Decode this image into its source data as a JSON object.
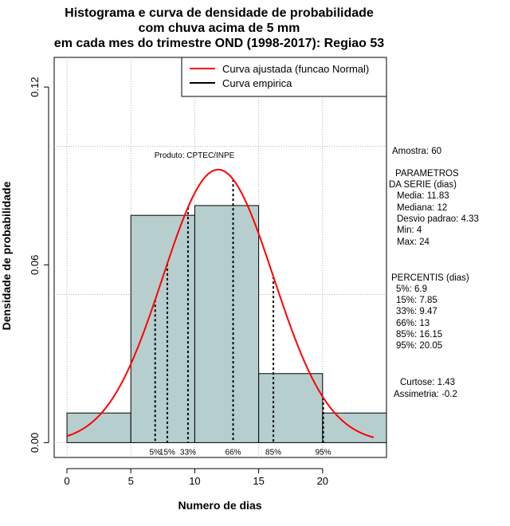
{
  "colors": {
    "bar_fill": "#b7cece",
    "curve": "#ff0000",
    "empirical": "#000000",
    "grid": "#b0b0b0"
  },
  "chart_data": {
    "type": "histogram",
    "title_lines": [
      "Histograma e curva de densidade de probabilidade",
      "com chuva acima de 5 mm",
      "em cada mes do trimestre OND (1998-2017): Regiao 53"
    ],
    "xlabel": "Numero de dias",
    "ylabel": "Densidade de probabilidade",
    "xlim": [
      -1,
      25
    ],
    "ylim": [
      -0.005,
      0.13
    ],
    "x_ticks": [
      0,
      5,
      10,
      15,
      20
    ],
    "y_ticks": [
      0.0,
      0.06,
      0.12
    ],
    "y_tick_labels": [
      "0.00",
      "0.06",
      "0.12"
    ],
    "bins": [
      {
        "x0": 0,
        "x1": 5,
        "density": 0.01
      },
      {
        "x0": 5,
        "x1": 10,
        "density": 0.0767
      },
      {
        "x0": 10,
        "x1": 15,
        "density": 0.08
      },
      {
        "x0": 15,
        "x1": 20,
        "density": 0.0233
      },
      {
        "x0": 20,
        "x1": 25,
        "density": 0.01
      }
    ],
    "normal_fit": {
      "mean": 11.83,
      "sd": 4.33,
      "x_from": 0,
      "x_to": 24
    },
    "percentile_markers": [
      {
        "label": "5%",
        "x": 6.9
      },
      {
        "label": "15%",
        "x": 7.85
      },
      {
        "label": "33%",
        "x": 9.47
      },
      {
        "label": "66%",
        "x": 13
      },
      {
        "label": "85%",
        "x": 16.15
      },
      {
        "label": "95%",
        "x": 20.05
      }
    ],
    "legend": [
      {
        "label": "Curva ajustada (funcao Normal)",
        "color": "#ff0000"
      },
      {
        "label": "Curva empirica",
        "color": "#000000"
      }
    ],
    "watermark": "Produto: CPTEC/INPE"
  },
  "stats_panel": {
    "amostra": "Amostra: 60",
    "parametros_title_1": "PARAMETROS",
    "parametros_title_2": "DA SERIE (dias)",
    "media": "Media: 11.83",
    "mediana": "Mediana: 12",
    "desvio": "Desvio padrao: 4.33",
    "min": "Min: 4",
    "max": "Max: 24",
    "percentis_title": "PERCENTIS (dias)",
    "p5": "5%: 6.9",
    "p15": "15%: 7.85",
    "p33": "33%: 9.47",
    "p66": "66%: 13",
    "p85": "85%: 16.15",
    "p95": "95%: 20.05",
    "curtose": "Curtose: 1.43",
    "assimetria": "Assimetria: -0.2"
  }
}
